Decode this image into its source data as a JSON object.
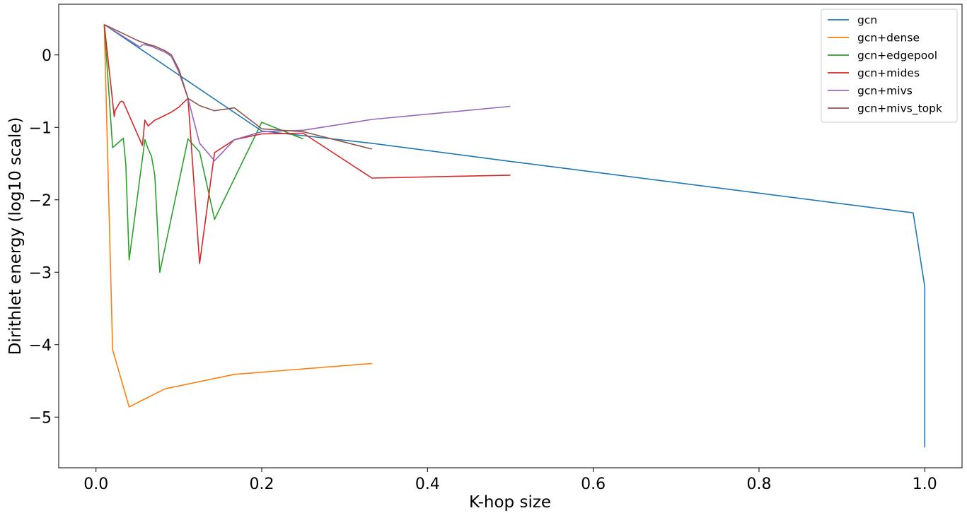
{
  "chart_data": {
    "type": "line",
    "title": "",
    "xlabel": "K-hop size",
    "ylabel": "Dirithlet energy (log10 scale)",
    "xlim": [
      -0.045,
      1.045
    ],
    "ylim": [
      -5.7,
      0.7
    ],
    "x_ticks": [
      0.0,
      0.2,
      0.4,
      0.6,
      0.8,
      1.0
    ],
    "x_tick_labels": [
      "0.0",
      "0.2",
      "0.4",
      "0.6",
      "0.8",
      "1.0"
    ],
    "y_ticks": [
      0,
      -1,
      -2,
      -3,
      -4,
      -5
    ],
    "y_tick_labels": [
      "0",
      "−1",
      "−2",
      "−3",
      "−4",
      "−5"
    ],
    "grid": false,
    "legend_position": "top-right",
    "series": [
      {
        "name": "gcn",
        "color": "#1f77b4",
        "x": [
          0.01,
          0.2,
          0.333,
          0.5,
          0.986,
          1.0,
          1.0
        ],
        "y": [
          0.42,
          -1.05,
          -1.22,
          -1.47,
          -2.18,
          -3.2,
          -5.42
        ]
      },
      {
        "name": "gcn+dense",
        "color": "#ff7f0e",
        "x": [
          0.01,
          0.02,
          0.04,
          0.083,
          0.167,
          0.333
        ],
        "y": [
          0.42,
          -4.07,
          -4.86,
          -4.61,
          -4.41,
          -4.26
        ]
      },
      {
        "name": "gcn+edgepool",
        "color": "#2ca02c",
        "x": [
          0.01,
          0.02,
          0.033,
          0.036,
          0.04,
          0.059,
          0.063,
          0.067,
          0.071,
          0.077,
          0.111,
          0.125,
          0.143,
          0.2,
          0.25
        ],
        "y": [
          0.42,
          -1.28,
          -1.15,
          -1.52,
          -2.83,
          -1.17,
          -1.3,
          -1.4,
          -1.67,
          -3.0,
          -1.16,
          -1.34,
          -2.27,
          -0.93,
          -1.16
        ]
      },
      {
        "name": "gcn+mides",
        "color": "#d62728",
        "x": [
          0.01,
          0.022,
          0.023,
          0.029,
          0.031,
          0.033,
          0.056,
          0.059,
          0.063,
          0.067,
          0.071,
          0.077,
          0.091,
          0.1,
          0.111,
          0.125,
          0.143,
          0.167,
          0.2,
          0.25,
          0.333,
          0.5
        ],
        "y": [
          0.42,
          -0.85,
          -0.77,
          -0.65,
          -0.64,
          -0.65,
          -1.25,
          -0.9,
          -0.98,
          -0.94,
          -0.9,
          -0.87,
          -0.79,
          -0.72,
          -0.6,
          -2.88,
          -1.35,
          -1.17,
          -1.09,
          -1.08,
          -1.7,
          -1.66
        ]
      },
      {
        "name": "gcn+mivs",
        "color": "#9467bd",
        "x": [
          0.01,
          0.053,
          0.056,
          0.059,
          0.067,
          0.071,
          0.077,
          0.083,
          0.091,
          0.1,
          0.111,
          0.125,
          0.143,
          0.167,
          0.2,
          0.25,
          0.333,
          0.5
        ],
        "y": [
          0.42,
          0.11,
          0.14,
          0.14,
          0.12,
          0.1,
          0.07,
          0.04,
          -0.02,
          -0.24,
          -0.6,
          -1.22,
          -1.46,
          -1.17,
          -1.06,
          -1.04,
          -0.89,
          -0.71
        ]
      },
      {
        "name": "gcn+mivs_topk",
        "color": "#8c564b",
        "x": [
          0.01,
          0.05,
          0.059,
          0.071,
          0.077,
          0.083,
          0.091,
          0.1,
          0.111,
          0.125,
          0.143,
          0.167,
          0.2,
          0.25,
          0.333
        ],
        "y": [
          0.42,
          0.2,
          0.16,
          0.12,
          0.09,
          0.06,
          0.0,
          -0.2,
          -0.6,
          -0.7,
          -0.77,
          -0.73,
          -1.02,
          -1.06,
          -1.3
        ]
      }
    ]
  }
}
